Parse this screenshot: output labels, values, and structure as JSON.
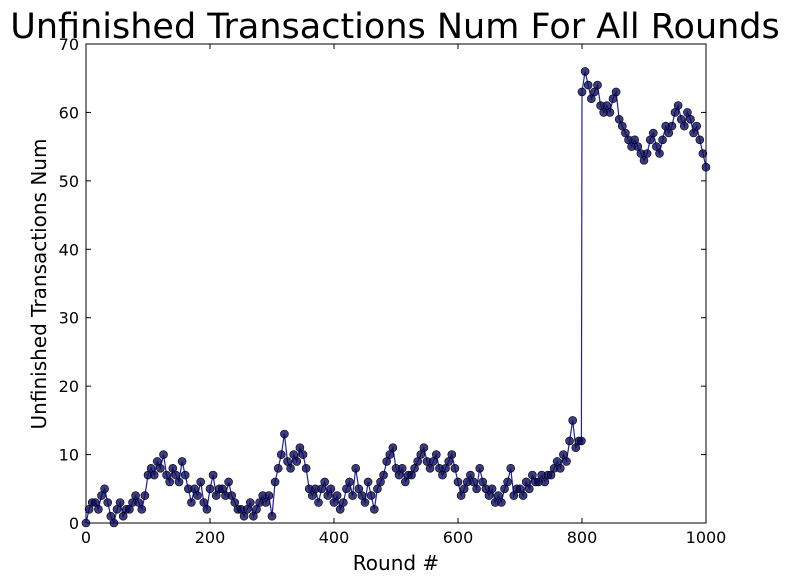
{
  "chart_data": {
    "type": "line",
    "title": "Unfinished Transactions Num For All Rounds",
    "xlabel": "Round #",
    "ylabel": "Unfinished Transactions Num",
    "xlim": [
      0,
      1000
    ],
    "ylim": [
      0,
      70
    ],
    "xticks": [
      0,
      200,
      400,
      600,
      800,
      1000
    ],
    "yticks": [
      0,
      10,
      20,
      30,
      40,
      50,
      60,
      70
    ],
    "grid": false,
    "legend": "none",
    "series": [
      {
        "line_color": "#1f1fa8",
        "marker_color": "#0b0b5e",
        "x": [
          0,
          5,
          10,
          15,
          20,
          25,
          30,
          35,
          40,
          45,
          50,
          55,
          60,
          65,
          70,
          75,
          80,
          85,
          90,
          95,
          100,
          105,
          110,
          115,
          120,
          125,
          130,
          135,
          140,
          145,
          150,
          155,
          160,
          165,
          170,
          175,
          180,
          185,
          190,
          195,
          200,
          205,
          210,
          215,
          220,
          225,
          230,
          235,
          240,
          245,
          250,
          255,
          260,
          265,
          270,
          275,
          280,
          285,
          290,
          295,
          300,
          305,
          310,
          315,
          320,
          325,
          330,
          335,
          340,
          345,
          350,
          355,
          360,
          365,
          370,
          375,
          380,
          385,
          390,
          395,
          400,
          405,
          410,
          415,
          420,
          425,
          430,
          435,
          440,
          445,
          450,
          455,
          460,
          465,
          470,
          475,
          480,
          485,
          490,
          495,
          500,
          505,
          510,
          515,
          520,
          525,
          530,
          535,
          540,
          545,
          550,
          555,
          560,
          565,
          570,
          575,
          580,
          585,
          590,
          595,
          600,
          605,
          610,
          615,
          620,
          625,
          630,
          635,
          640,
          645,
          650,
          655,
          660,
          665,
          670,
          675,
          680,
          685,
          690,
          695,
          700,
          705,
          710,
          715,
          720,
          725,
          730,
          735,
          740,
          745,
          750,
          755,
          760,
          765,
          770,
          775,
          780,
          785,
          790,
          795,
          799,
          800,
          805,
          810,
          815,
          820,
          825,
          830,
          835,
          840,
          845,
          850,
          855,
          860,
          865,
          870,
          875,
          880,
          885,
          890,
          895,
          900,
          905,
          910,
          915,
          920,
          925,
          930,
          935,
          940,
          945,
          950,
          955,
          960,
          965,
          970,
          975,
          980,
          985,
          990,
          995,
          1000
        ],
        "y": [
          0,
          2,
          3,
          3,
          2,
          4,
          5,
          3,
          1,
          0,
          2,
          3,
          1,
          2,
          2,
          3,
          4,
          3,
          2,
          4,
          7,
          8,
          7,
          9,
          8,
          10,
          7,
          6,
          8,
          7,
          6,
          9,
          7,
          5,
          3,
          5,
          4,
          6,
          3,
          2,
          5,
          7,
          4,
          5,
          5,
          4,
          6,
          4,
          3,
          2,
          2,
          1,
          2,
          3,
          1,
          2,
          3,
          4,
          3,
          4,
          1,
          6,
          8,
          10,
          13,
          9,
          8,
          10,
          9,
          11,
          10,
          8,
          5,
          4,
          5,
          3,
          5,
          6,
          4,
          5,
          3,
          4,
          2,
          3,
          5,
          6,
          4,
          8,
          5,
          4,
          3,
          6,
          4,
          2,
          5,
          6,
          7,
          9,
          10,
          11,
          8,
          7,
          8,
          6,
          7,
          7,
          8,
          9,
          10,
          11,
          9,
          8,
          9,
          10,
          8,
          7,
          8,
          9,
          10,
          8,
          6,
          4,
          5,
          6,
          7,
          6,
          5,
          8,
          6,
          5,
          4,
          5,
          3,
          4,
          3,
          5,
          6,
          8,
          4,
          5,
          5,
          4,
          6,
          5,
          7,
          6,
          6,
          7,
          6,
          7,
          7,
          8,
          9,
          8,
          10,
          9,
          12,
          15,
          11,
          12,
          12,
          63,
          66,
          64,
          62,
          63,
          64,
          61,
          60,
          61,
          60,
          62,
          63,
          59,
          58,
          57,
          56,
          55,
          56,
          55,
          54,
          53,
          54,
          56,
          57,
          55,
          54,
          56,
          58,
          57,
          58,
          60,
          61,
          59,
          58,
          60,
          59,
          57,
          58,
          56,
          54,
          52
        ]
      }
    ]
  }
}
